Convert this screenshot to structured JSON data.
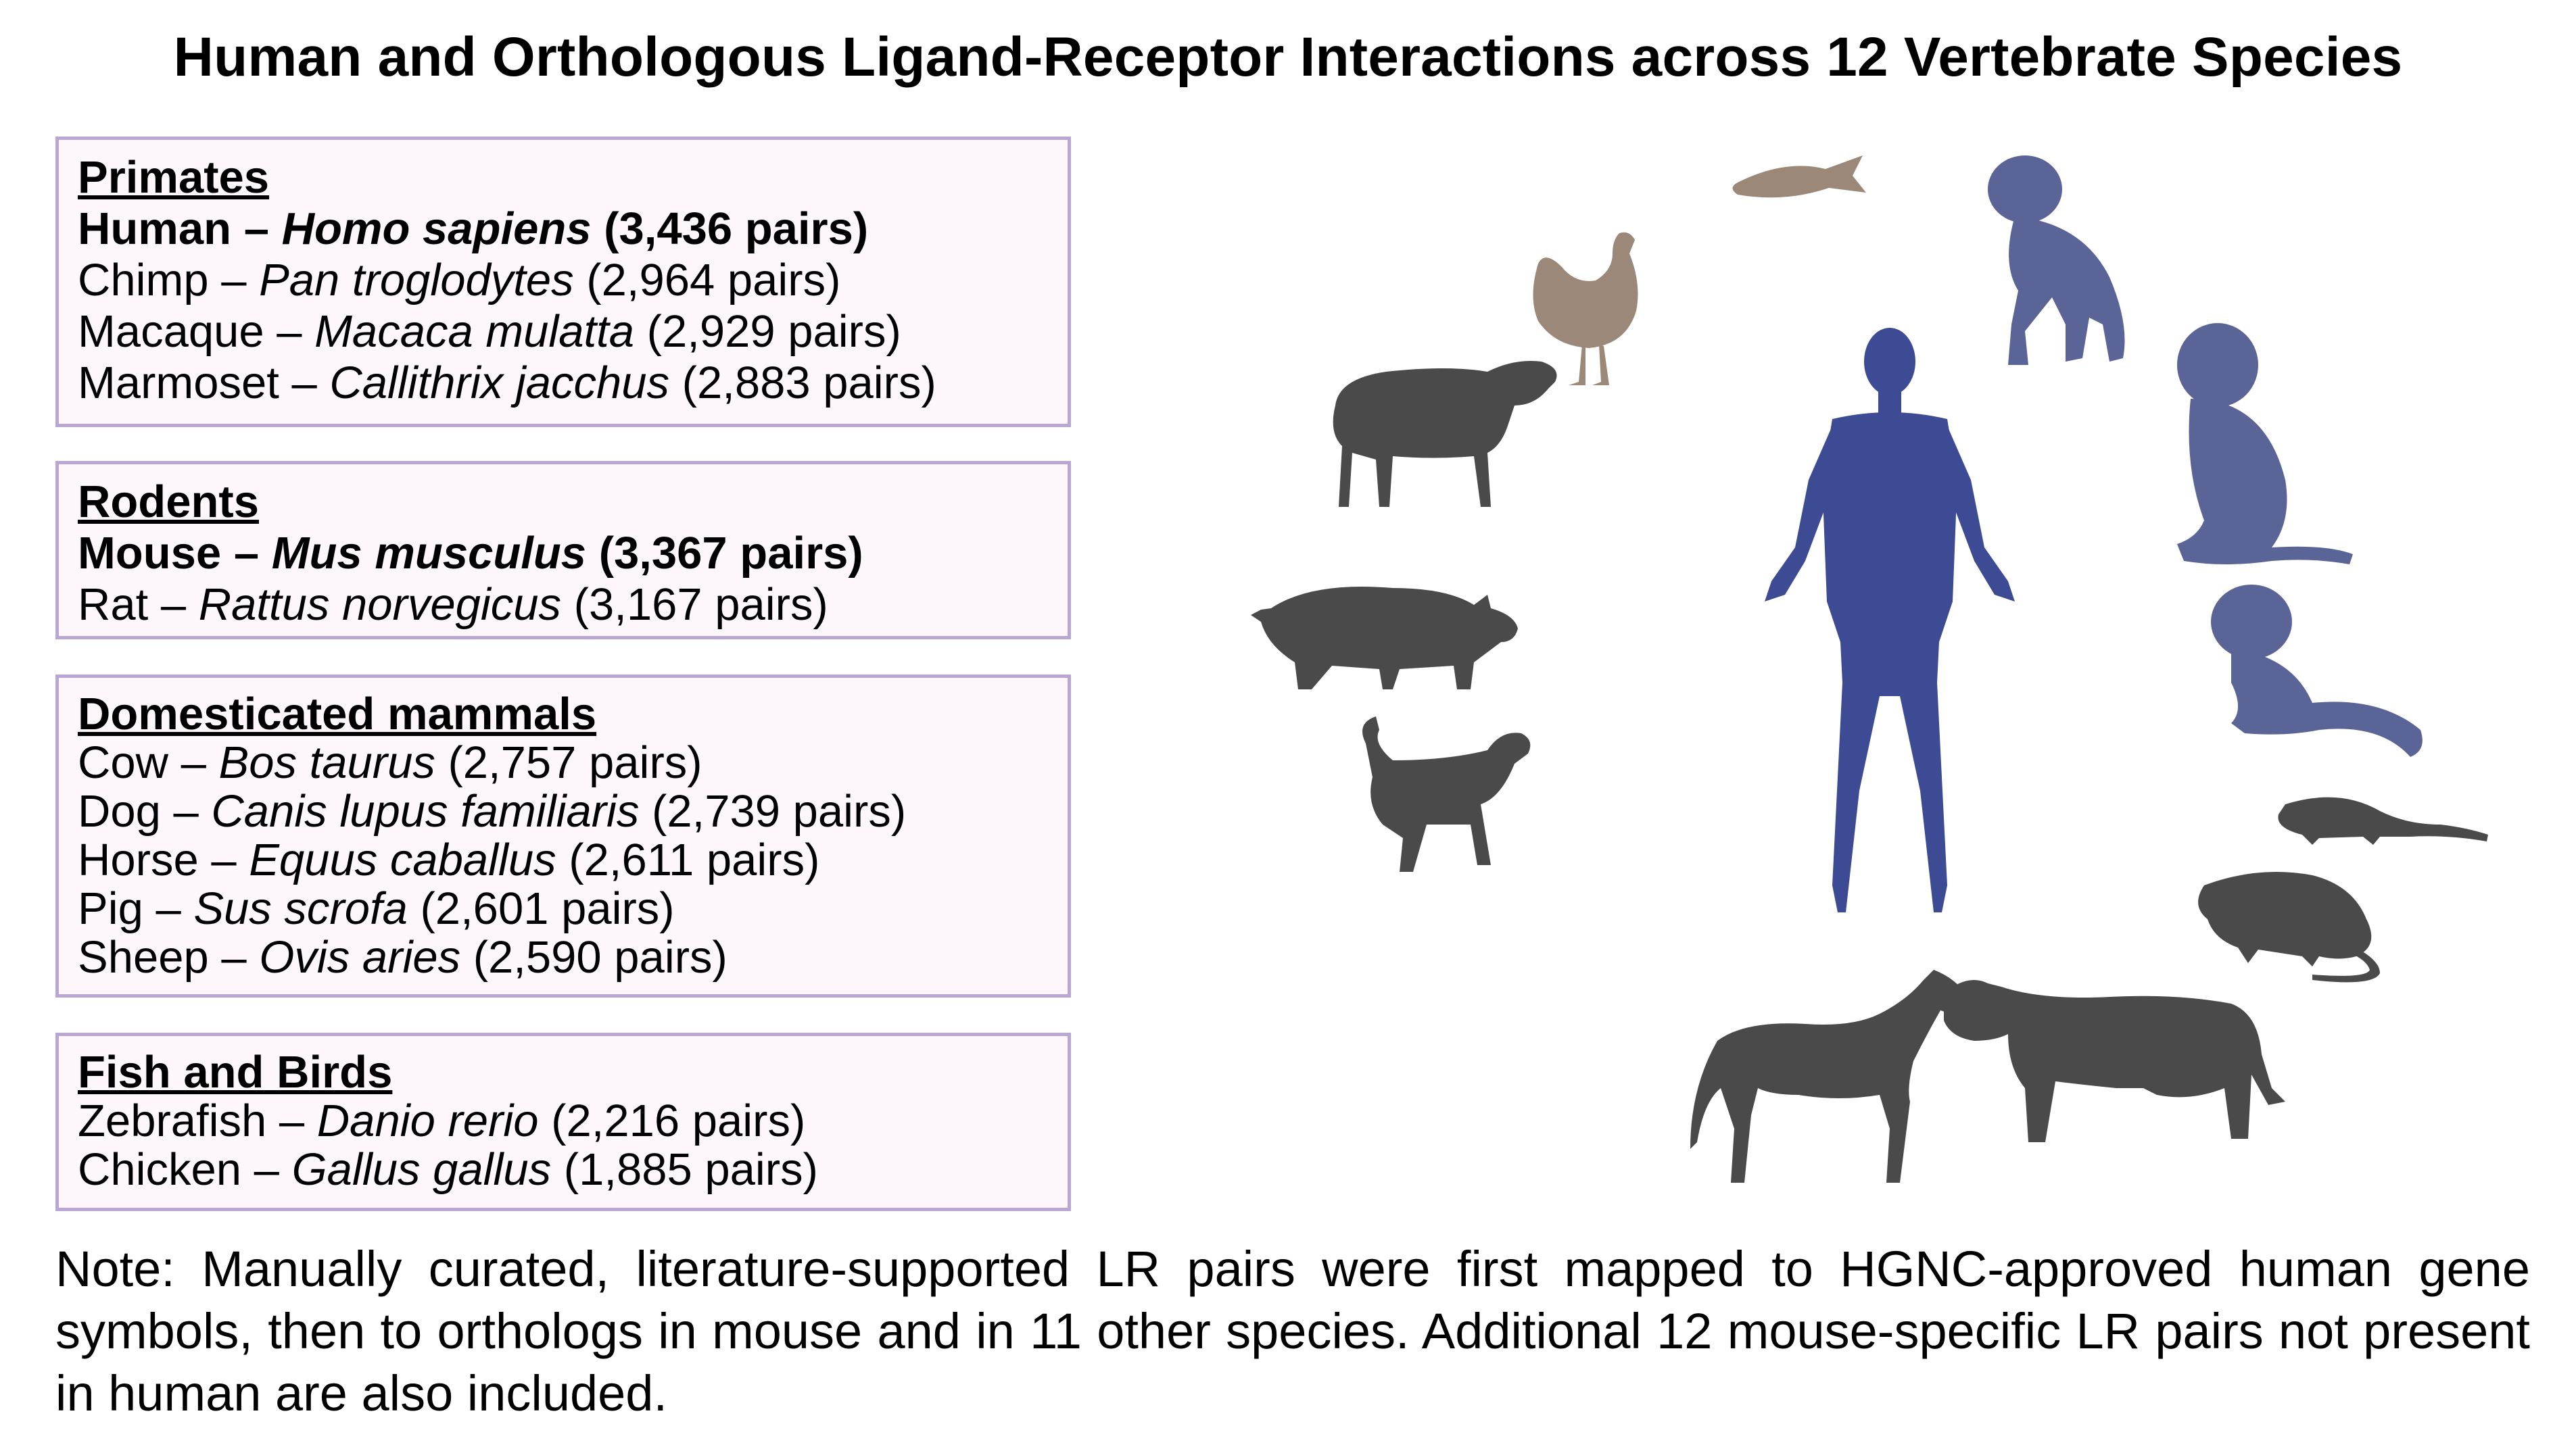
{
  "title": "Human and Orthologous Ligand-Receptor Interactions across 12 Vertebrate Species",
  "groups": [
    {
      "heading": "Primates",
      "rows": [
        {
          "common": "Human",
          "sep": " – ",
          "species": "Homo sapiens",
          "count": " (3,436 pairs)",
          "bold": true
        },
        {
          "common": "Chimp",
          "sep": " – ",
          "species": "Pan troglodytes",
          "count": " (2,964 pairs)",
          "bold": false
        },
        {
          "common": "Macaque",
          "sep": " – ",
          "species": "Macaca mulatta",
          "count": " (2,929 pairs)",
          "bold": false
        },
        {
          "common": "Marmoset",
          "sep": " – ",
          "species": "Callithrix jacchus",
          "count": " (2,883 pairs)",
          "bold": false
        }
      ]
    },
    {
      "heading": "Rodents",
      "rows": [
        {
          "common": "Mouse",
          "sep": " – ",
          "species": "Mus musculus",
          "count": " (3,367 pairs)",
          "bold": true
        },
        {
          "common": "Rat",
          "sep": " – ",
          "species": "Rattus norvegicus",
          "count": " (3,167 pairs)",
          "bold": false
        }
      ]
    },
    {
      "heading": "Domesticated mammals",
      "rows": [
        {
          "common": "Cow",
          "sep": " – ",
          "species": "Bos taurus",
          "count": " (2,757 pairs)",
          "bold": false
        },
        {
          "common": "Dog",
          "sep": " – ",
          "species": "Canis lupus familiaris",
          "count": " (2,739 pairs)",
          "bold": false
        },
        {
          "common": "Horse",
          "sep": " – ",
          "species": "Equus caballus",
          "count": " (2,611 pairs)",
          "bold": false
        },
        {
          "common": "Pig",
          "sep": " – ",
          "species": "Sus scrofa",
          "count": " (2,601 pairs)",
          "bold": false
        },
        {
          "common": "Sheep",
          "sep": " – ",
          "species": "Ovis aries",
          "count": " (2,590 pairs)",
          "bold": false
        }
      ]
    },
    {
      "heading": "Fish and Birds",
      "rows": [
        {
          "common": "Zebrafish",
          "sep": " – ",
          "species": "Danio rerio",
          "count": " (2,216 pairs)",
          "bold": false
        },
        {
          "common": "Chicken",
          "sep": " – ",
          "species": "Gallus gallus",
          "count": " (1,885 pairs)",
          "bold": false
        }
      ]
    }
  ],
  "note": "Note: Manually curated, literature-supported LR pairs were first mapped to HGNC-approved human gene symbols, then to orthologs in mouse and in 11 other species. Additional 12 mouse-specific LR pairs not present in human are also included.",
  "colors": {
    "human": "#3d4a94",
    "primate": "#5a6496",
    "other_mammal": "#4a4a4a",
    "fish_bird": "#9b8878",
    "box_border": "#b9a6d2",
    "box_fill": "#fdf7fb"
  },
  "icons": [
    "human-silhouette-icon",
    "zebrafish-icon",
    "chicken-icon",
    "chimp-icon",
    "macaque-icon",
    "marmoset-icon",
    "mouse-icon",
    "rat-icon",
    "cow-icon",
    "horse-icon",
    "dog-icon",
    "pig-icon",
    "sheep-icon"
  ]
}
